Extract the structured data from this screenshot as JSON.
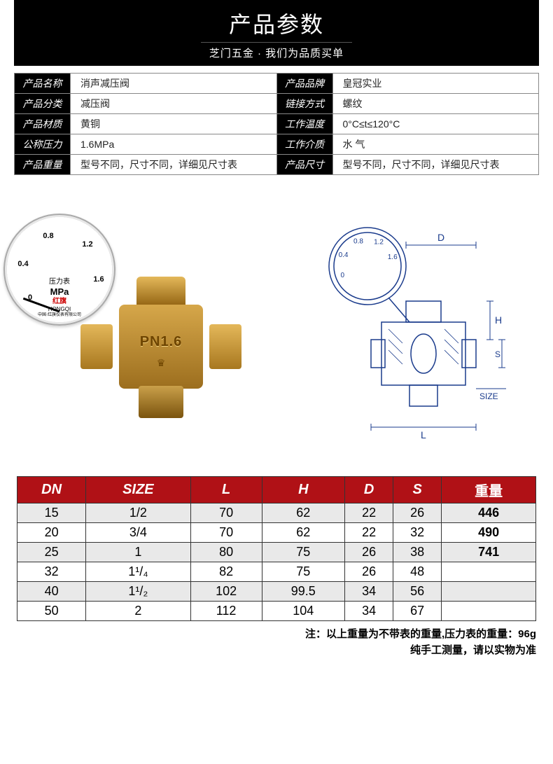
{
  "header": {
    "title": "产品参数",
    "subtitle": "芝门五金 · 我们为品质买单"
  },
  "specs": [
    {
      "l1": "产品名称",
      "v1": "消声减压阀",
      "l2": "产品品牌",
      "v2": "皇冠实业"
    },
    {
      "l1": "产品分类",
      "v1": "减压阀",
      "l2": "链接方式",
      "v2": "螺纹"
    },
    {
      "l1": "产品材质",
      "v1": "黄铜",
      "l2": "工作温度",
      "v2": "0°C≤t≤120°C"
    },
    {
      "l1": "公称压力",
      "v1": "1.6MPa",
      "l2": "工作介质",
      "v2": "水 气"
    },
    {
      "l1": "产品重量",
      "v1": "型号不同，尺寸不同，详细见尺寸表",
      "l2": "产品尺寸",
      "v2": "型号不同，尺寸不同，详细见尺寸表"
    }
  ],
  "gauge": {
    "ticks": [
      "0",
      "0.4",
      "0.8",
      "1.2",
      "1.6"
    ],
    "unit": "MPa",
    "label_top": "压力表",
    "brand": "HONGQI",
    "brand_cn": "红旗",
    "origin": "中国·红旗仪表有限公司"
  },
  "valve_marking": "PN1.6",
  "drawing": {
    "dims": [
      "D",
      "H",
      "S",
      "SIZE",
      "L"
    ],
    "gauge_ticks": [
      "0",
      "0.4",
      "0.8",
      "1.2",
      "1.6"
    ]
  },
  "size_table": {
    "headers": [
      "DN",
      "SIZE",
      "L",
      "H",
      "D",
      "S",
      "重量"
    ],
    "rows": [
      [
        "15",
        "1/2",
        "70",
        "62",
        "22",
        "26",
        "446"
      ],
      [
        "20",
        "3/4",
        "70",
        "62",
        "22",
        "32",
        "490"
      ],
      [
        "25",
        "1",
        "80",
        "75",
        "26",
        "38",
        "741"
      ],
      [
        "32",
        "1¹/₄",
        "82",
        "75",
        "26",
        "48",
        ""
      ],
      [
        "40",
        "1¹/₂",
        "102",
        "99.5",
        "34",
        "56",
        ""
      ],
      [
        "50",
        "2",
        "112",
        "104",
        "34",
        "67",
        ""
      ]
    ]
  },
  "footnote": {
    "line1": "注：以上重量为不带表的重量,压力表的重量：96g",
    "line2": "纯手工测量，请以实物为准"
  },
  "colors": {
    "header_bg": "#000000",
    "header_fg": "#ffffff",
    "spec_label_bg": "#000000",
    "spec_label_fg": "#ffffff",
    "size_header_bg": "#b01116",
    "size_header_fg": "#ffffff",
    "row_alt_bg": "#e9e9e9",
    "drawing_stroke": "#1a3b8c",
    "brass_light": "#e4b85a",
    "brass_dark": "#8f600f"
  }
}
